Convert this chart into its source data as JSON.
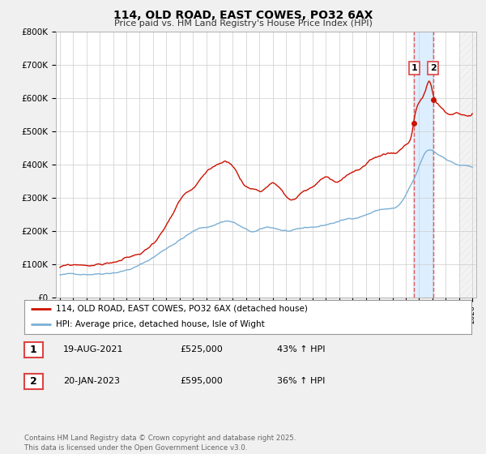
{
  "title": "114, OLD ROAD, EAST COWES, PO32 6AX",
  "subtitle": "Price paid vs. HM Land Registry's House Price Index (HPI)",
  "ylim": [
    0,
    800000
  ],
  "xlim": [
    1994.7,
    2026.3
  ],
  "yticks": [
    0,
    100000,
    200000,
    300000,
    400000,
    500000,
    600000,
    700000,
    800000
  ],
  "ytick_labels": [
    "£0",
    "£100K",
    "£200K",
    "£300K",
    "£400K",
    "£500K",
    "£600K",
    "£700K",
    "£800K"
  ],
  "hpi_color": "#7bafd4",
  "price_color": "#cc1100",
  "shaded_region": [
    2021.55,
    2023.1
  ],
  "shaded_color": "#ddeeff",
  "dashed_line_color": "#dd4444",
  "marker1_x": 2021.636,
  "marker1_y": 525000,
  "marker2_x": 2023.055,
  "marker2_y": 595000,
  "legend_label1": "114, OLD ROAD, EAST COWES, PO32 6AX (detached house)",
  "legend_label2": "HPI: Average price, detached house, Isle of Wight",
  "table_rows": [
    {
      "num": "1",
      "date": "19-AUG-2021",
      "price": "£525,000",
      "hpi": "43% ↑ HPI"
    },
    {
      "num": "2",
      "date": "20-JAN-2023",
      "price": "£595,000",
      "hpi": "36% ↑ HPI"
    }
  ],
  "footer": "Contains HM Land Registry data © Crown copyright and database right 2025.\nThis data is licensed under the Open Government Licence v3.0.",
  "bg_color": "#f0f0f0",
  "plot_bg_color": "#ffffff",
  "grid_color": "#cccccc",
  "hatched_region_start": 2025.0
}
